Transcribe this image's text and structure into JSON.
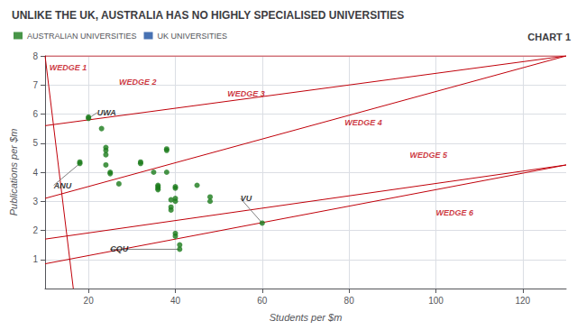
{
  "chart_data": {
    "type": "scatter",
    "title": "UNLIKE THE UK, AUSTRALIA HAS NO HIGHLY SPECIALISED UNIVERSITIES",
    "subtitle": "CHART 1",
    "xlabel": "Students per $m",
    "ylabel": "Publications per $m",
    "xlim": [
      10,
      130
    ],
    "ylim": [
      0,
      8
    ],
    "xticks": [
      20,
      40,
      60,
      80,
      100,
      120
    ],
    "yticks": [
      1,
      2,
      3,
      4,
      5,
      6,
      7,
      8
    ],
    "grid": true,
    "legend": "upper left",
    "series": [
      {
        "name": "AUSTRALIAN UNIVERSITIES",
        "color": "#1a7a1a",
        "x": [
          18,
          18,
          20,
          20,
          23,
          24,
          24,
          24,
          24,
          25,
          25,
          27,
          32,
          32,
          35,
          36,
          36,
          36,
          36,
          38,
          38,
          38,
          39,
          39,
          39,
          40,
          40,
          40,
          40,
          40,
          40,
          41,
          41,
          45,
          48,
          48,
          60
        ],
        "values": [
          4.35,
          4.3,
          5.9,
          5.85,
          5.5,
          4.85,
          4.75,
          4.6,
          4.25,
          4.0,
          3.95,
          3.6,
          4.35,
          4.3,
          4.0,
          3.55,
          3.5,
          3.45,
          3.4,
          4.8,
          4.75,
          4.0,
          3.05,
          2.8,
          2.7,
          3.5,
          3.45,
          3.1,
          3.0,
          1.9,
          1.8,
          1.5,
          1.35,
          3.55,
          3.15,
          3.0,
          2.25
        ]
      },
      {
        "name": "UK UNIVERSITIES",
        "color": "#1a4fa0",
        "x": [],
        "values": []
      }
    ],
    "lines": [
      {
        "label": "WEDGE 1",
        "color": "#c0000a",
        "x": [
          10,
          16.5
        ],
        "values": [
          8.0,
          0.0
        ],
        "label_x": 11,
        "label_y": 7.6
      },
      {
        "label": "WEDGE 2",
        "color": "#c0000a",
        "x": [
          10,
          130
        ],
        "values": [
          8.0,
          8.0
        ],
        "label_x": 27,
        "label_y": 7.1
      },
      {
        "label": "WEDGE 3",
        "color": "#c0000a",
        "x": [
          10,
          130
        ],
        "values": [
          5.6,
          8.0
        ],
        "label_x": 52,
        "label_y": 6.7
      },
      {
        "label": "WEDGE 4",
        "color": "#c0000a",
        "x": [
          10,
          130
        ],
        "values": [
          3.1,
          8.0
        ],
        "label_x": 79,
        "label_y": 5.7
      },
      {
        "label": "WEDGE 5",
        "color": "#c0000a",
        "x": [
          10,
          130
        ],
        "values": [
          1.7,
          4.25
        ],
        "label_x": 94,
        "label_y": 4.6
      },
      {
        "label": "WEDGE 6",
        "color": "#c0000a",
        "x": [
          10,
          130
        ],
        "values": [
          0.85,
          4.25
        ],
        "label_x": 100,
        "label_y": 2.6
      }
    ],
    "annotations": [
      {
        "text": "UWA",
        "x": 22,
        "y": 6.05,
        "target_x": 20.5,
        "target_y": 5.9
      },
      {
        "text": "ANU",
        "x": 12,
        "y": 3.55,
        "target_x": 18,
        "target_y": 4.3
      },
      {
        "text": "CQU",
        "x": 25,
        "y": 1.35,
        "target_x": 41,
        "target_y": 1.35
      },
      {
        "text": "VU",
        "x": 55,
        "y": 3.1,
        "target_x": 60,
        "target_y": 2.25
      }
    ]
  }
}
